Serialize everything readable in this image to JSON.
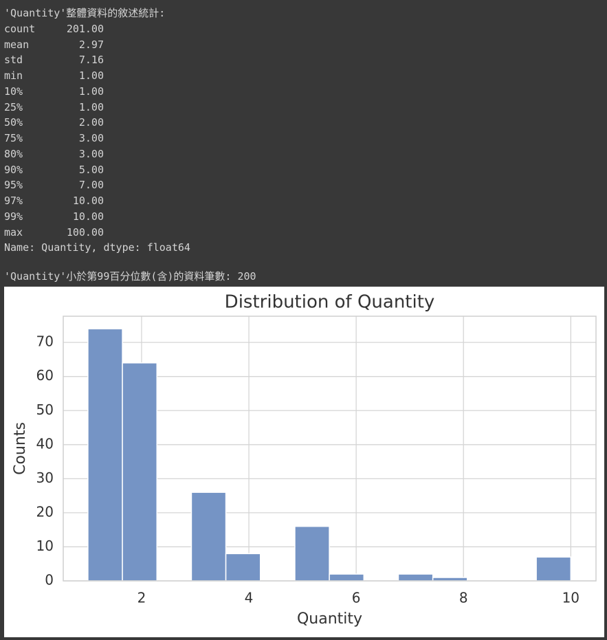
{
  "output": {
    "header": "'Quantity'整體資料的敘述統計:",
    "stats": [
      [
        "count",
        "201.00"
      ],
      [
        "mean",
        "2.97"
      ],
      [
        "std",
        "7.16"
      ],
      [
        "min",
        "1.00"
      ],
      [
        "10%",
        "1.00"
      ],
      [
        "25%",
        "1.00"
      ],
      [
        "50%",
        "2.00"
      ],
      [
        "75%",
        "3.00"
      ],
      [
        "80%",
        "3.00"
      ],
      [
        "90%",
        "5.00"
      ],
      [
        "95%",
        "7.00"
      ],
      [
        "97%",
        "10.00"
      ],
      [
        "99%",
        "10.00"
      ],
      [
        "max",
        "100.00"
      ]
    ],
    "footer": "Name: Quantity, dtype: float64",
    "summary": "'Quantity'小於第99百分位數(含)的資料筆數: 200"
  },
  "chart_data": {
    "type": "histogram",
    "title": "Distribution of Quantity",
    "x_label": "Quantity",
    "y_label": "Counts",
    "bins": [
      1,
      1.643,
      2.286,
      2.929,
      3.571,
      4.214,
      4.857,
      5.5,
      6.143,
      6.786,
      7.429,
      8.071,
      8.714,
      9.357,
      10
    ],
    "values": [
      74,
      64,
      0,
      26,
      8,
      0,
      16,
      2,
      0,
      2,
      1,
      0,
      0,
      7
    ],
    "color": "#7594c5",
    "xlim": [
      0.54,
      10.47
    ],
    "ylim": [
      0,
      77.7
    ],
    "xticks": [
      2,
      4,
      6,
      8,
      10
    ],
    "yticks": [
      0,
      10,
      20,
      30,
      40,
      50,
      60,
      70
    ],
    "grid": true
  }
}
